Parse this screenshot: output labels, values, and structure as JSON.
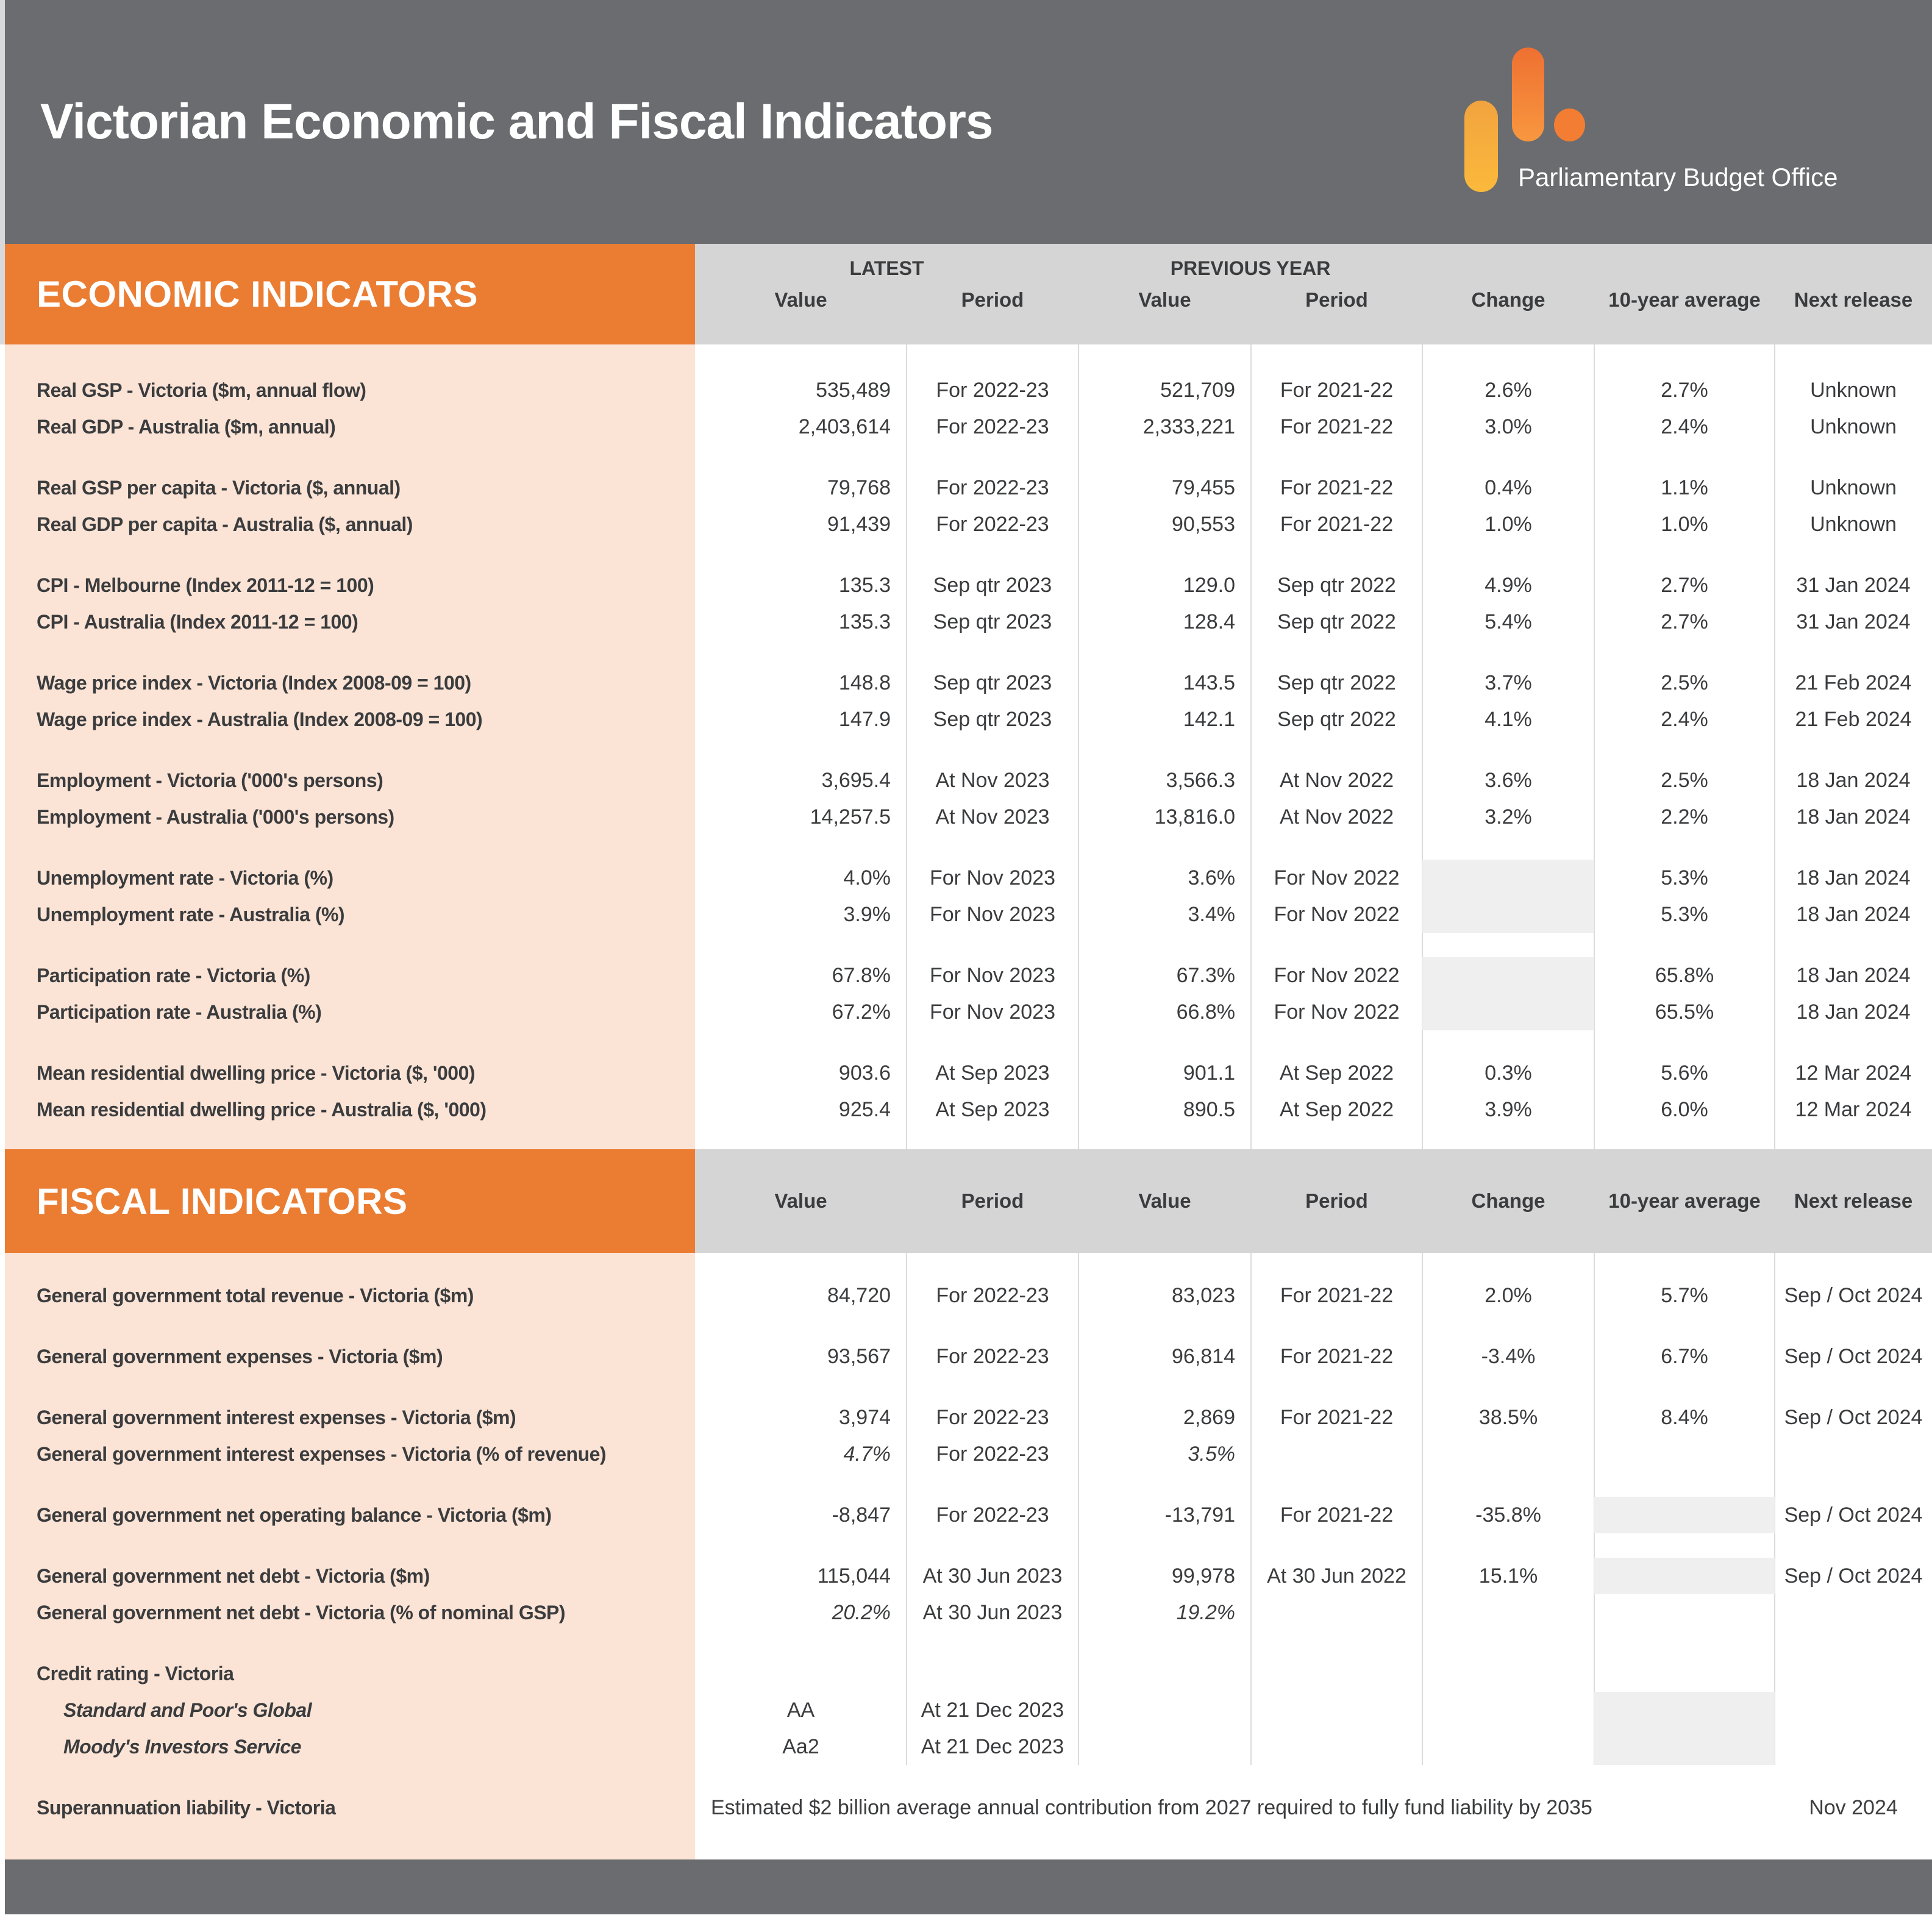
{
  "header": {
    "title": "Victorian Economic and Fiscal Indicators",
    "logo_text": "Parliamentary Budget Office"
  },
  "columns": {
    "latest": "LATEST",
    "previous_year": "PREVIOUS YEAR",
    "cols": [
      "Value",
      "Period",
      "Value",
      "Period",
      "Change",
      "10-year average",
      "Next release"
    ]
  },
  "colors": {
    "orange": "#EB7D33",
    "peach": "#FBE4D6",
    "band_gray": "#D5D5D6",
    "dark_gray": "#6B6C6F",
    "blank_gray": "#EFEFEF"
  },
  "economic": {
    "section_title": "ECONOMIC INDICATORS",
    "groups": [
      {
        "rows": [
          {
            "label": "Real GSP - Victoria ($m, annual flow)",
            "cells": [
              "535,489",
              "For 2022-23",
              "521,709",
              "For 2021-22",
              "2.6%",
              "2.7%",
              "Unknown"
            ]
          },
          {
            "label": "Real GDP - Australia ($m, annual)",
            "cells": [
              "2,403,614",
              "For 2022-23",
              "2,333,221",
              "For 2021-22",
              "3.0%",
              "2.4%",
              "Unknown"
            ]
          }
        ]
      },
      {
        "rows": [
          {
            "label": "Real GSP per capita - Victoria ($, annual)",
            "cells": [
              "79,768",
              "For 2022-23",
              "79,455",
              "For 2021-22",
              "0.4%",
              "1.1%",
              "Unknown"
            ]
          },
          {
            "label": "Real GDP per capita - Australia ($, annual)",
            "cells": [
              "91,439",
              "For 2022-23",
              "90,553",
              "For 2021-22",
              "1.0%",
              "1.0%",
              "Unknown"
            ]
          }
        ]
      },
      {
        "rows": [
          {
            "label": "CPI - Melbourne (Index 2011-12 = 100)",
            "cells": [
              "135.3",
              "Sep qtr 2023",
              "129.0",
              "Sep qtr 2022",
              "4.9%",
              "2.7%",
              "31 Jan 2024"
            ]
          },
          {
            "label": "CPI - Australia (Index 2011-12 = 100)",
            "cells": [
              "135.3",
              "Sep qtr 2023",
              "128.4",
              "Sep qtr 2022",
              "5.4%",
              "2.7%",
              "31 Jan 2024"
            ]
          }
        ]
      },
      {
        "rows": [
          {
            "label": "Wage price index - Victoria (Index 2008-09 = 100)",
            "cells": [
              "148.8",
              "Sep qtr 2023",
              "143.5",
              "Sep qtr 2022",
              "3.7%",
              "2.5%",
              "21 Feb 2024"
            ]
          },
          {
            "label": "Wage price index - Australia (Index 2008-09 = 100)",
            "cells": [
              "147.9",
              "Sep qtr 2023",
              "142.1",
              "Sep qtr 2022",
              "4.1%",
              "2.4%",
              "21 Feb 2024"
            ]
          }
        ]
      },
      {
        "rows": [
          {
            "label": "Employment - Victoria ('000's persons)",
            "cells": [
              "3,695.4",
              "At Nov 2023",
              "3,566.3",
              "At Nov 2022",
              "3.6%",
              "2.5%",
              "18 Jan 2024"
            ]
          },
          {
            "label": "Employment - Australia ('000's persons)",
            "cells": [
              "14,257.5",
              "At Nov 2023",
              "13,816.0",
              "At Nov 2022",
              "3.2%",
              "2.2%",
              "18 Jan 2024"
            ]
          }
        ]
      },
      {
        "rows": [
          {
            "label": "Unemployment rate - Victoria (%)",
            "cells": [
              "4.0%",
              "For Nov 2023",
              "3.6%",
              "For Nov 2022",
              "",
              "5.3%",
              "18 Jan 2024"
            ],
            "gray_cols": [
              4
            ]
          },
          {
            "label": "Unemployment rate - Australia (%)",
            "cells": [
              "3.9%",
              "For Nov 2023",
              "3.4%",
              "For Nov 2022",
              "",
              "5.3%",
              "18 Jan 2024"
            ],
            "gray_cols": [
              4
            ]
          }
        ]
      },
      {
        "rows": [
          {
            "label": "Participation rate - Victoria (%)",
            "cells": [
              "67.8%",
              "For Nov 2023",
              "67.3%",
              "For Nov 2022",
              "",
              "65.8%",
              "18 Jan 2024"
            ],
            "gray_cols": [
              4
            ]
          },
          {
            "label": "Participation rate - Australia (%)",
            "cells": [
              "67.2%",
              "For Nov 2023",
              "66.8%",
              "For Nov 2022",
              "",
              "65.5%",
              "18 Jan 2024"
            ],
            "gray_cols": [
              4
            ]
          }
        ]
      },
      {
        "rows": [
          {
            "label": "Mean residential dwelling price - Victoria ($, '000)",
            "cells": [
              "903.6",
              "At Sep 2023",
              "901.1",
              "At Sep 2022",
              "0.3%",
              "5.6%",
              "12 Mar 2024"
            ]
          },
          {
            "label": "Mean residential dwelling price - Australia ($, '000)",
            "cells": [
              "925.4",
              "At Sep 2023",
              "890.5",
              "At Sep 2022",
              "3.9%",
              "6.0%",
              "12 Mar 2024"
            ]
          }
        ]
      }
    ]
  },
  "fiscal": {
    "section_title": "FISCAL INDICATORS",
    "groups": [
      {
        "rows": [
          {
            "label": "General government total revenue - Victoria ($m)",
            "cells": [
              "84,720",
              "For 2022-23",
              "83,023",
              "For 2021-22",
              "2.0%",
              "5.7%",
              "Sep / Oct 2024"
            ]
          }
        ]
      },
      {
        "rows": [
          {
            "label": "General government expenses - Victoria ($m)",
            "cells": [
              "93,567",
              "For 2022-23",
              "96,814",
              "For 2021-22",
              "-3.4%",
              "6.7%",
              "Sep / Oct 2024"
            ]
          }
        ]
      },
      {
        "rows": [
          {
            "label": "General government interest expenses - Victoria ($m)",
            "cells": [
              "3,974",
              "For 2022-23",
              "2,869",
              "For 2021-22",
              "38.5%",
              "8.4%",
              "Sep / Oct 2024"
            ]
          },
          {
            "label": "General government interest expenses - Victoria (% of revenue)",
            "cells": [
              "4.7%",
              "For 2022-23",
              "3.5%",
              "",
              "",
              "",
              ""
            ],
            "italic_cols": [
              0,
              2
            ]
          }
        ]
      },
      {
        "rows": [
          {
            "label": "General government net operating balance - Victoria ($m)",
            "cells": [
              "-8,847",
              "For 2022-23",
              "-13,791",
              "For 2021-22",
              "-35.8%",
              "",
              "Sep / Oct 2024"
            ],
            "gray_cols": [
              5
            ]
          }
        ]
      },
      {
        "rows": [
          {
            "label": "General government net debt - Victoria ($m)",
            "cells": [
              "115,044",
              "At 30 Jun 2023",
              "99,978",
              "At 30 Jun 2022",
              "15.1%",
              "",
              "Sep / Oct 2024"
            ],
            "gray_cols": [
              5
            ]
          },
          {
            "label": "General government net debt - Victoria (% of nominal GSP)",
            "cells": [
              "20.2%",
              "At 30 Jun 2023",
              "19.2%",
              "",
              "",
              "",
              ""
            ],
            "italic_cols": [
              0,
              2
            ]
          }
        ]
      },
      {
        "rows": [
          {
            "label": "Credit rating - Victoria",
            "cells": [
              "",
              "",
              "",
              "",
              "",
              "",
              ""
            ]
          },
          {
            "label": "Standard and Poor's Global",
            "label_class": "sub",
            "center_value": true,
            "cells": [
              "AA",
              "At 21 Dec 2023",
              "",
              "",
              "",
              "",
              ""
            ],
            "gray_cols": [
              5
            ]
          },
          {
            "label": "Moody's Investors Service",
            "label_class": "sub",
            "center_value": true,
            "cells": [
              "Aa2",
              "At 21 Dec 2023",
              "",
              "",
              "",
              "",
              ""
            ],
            "gray_cols": [
              5
            ]
          }
        ]
      },
      {
        "rows": [
          {
            "label": "Superannuation liability - Victoria",
            "span_text": "Estimated $2 billion average annual contribution from 2027 required to fully fund liability by 2035",
            "next_release": "Nov 2024",
            "cells": []
          }
        ]
      }
    ]
  }
}
